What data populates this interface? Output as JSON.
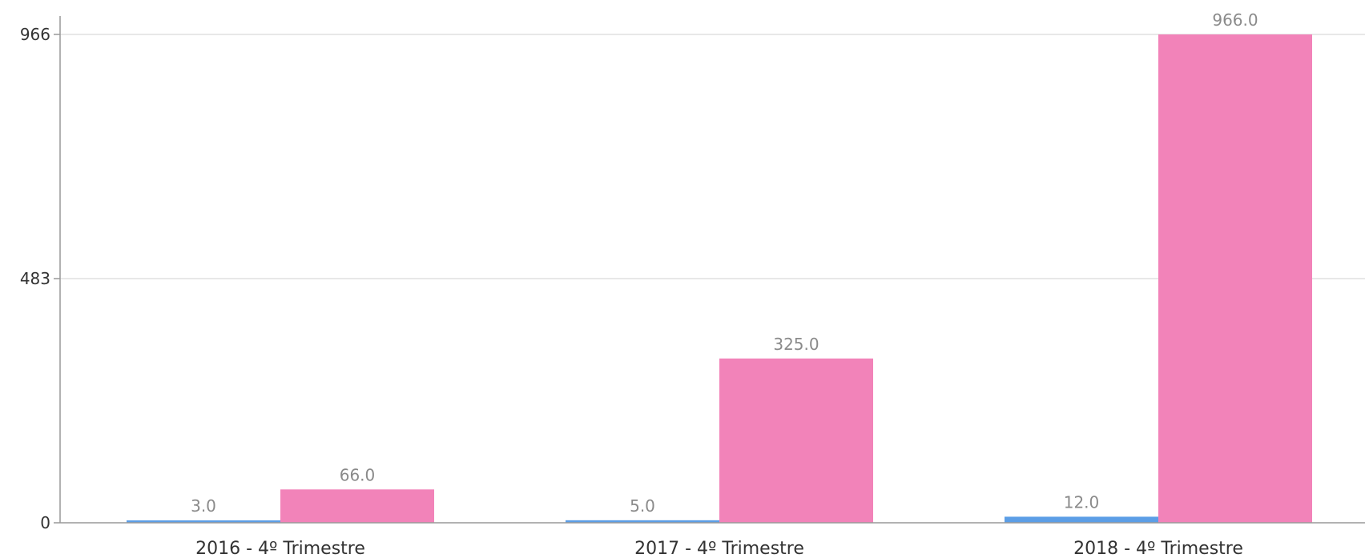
{
  "chart_data": {
    "type": "bar",
    "title": "",
    "xlabel": "",
    "ylabel": "",
    "categories": [
      "2016 - 4º Trimestre",
      "2017 - 4º Trimestre",
      "2018 - 4º Trimestre"
    ],
    "series": [
      {
        "values": [
          3.0,
          5.0,
          12.0
        ],
        "labels": [
          "3.0",
          "5.0",
          "12.0"
        ],
        "color": "#5c9ee6"
      },
      {
        "values": [
          66.0,
          325.0,
          966.0
        ],
        "labels": [
          "66.0",
          "325.0",
          "966.0"
        ],
        "color": "#f283b9"
      }
    ],
    "ylim": [
      0,
      966
    ],
    "yticks": [
      0,
      483,
      966
    ],
    "ytick_labels": [
      "0",
      "483",
      "966"
    ],
    "grid": true,
    "grid_color": "#e0e0e0",
    "axis_color": "#999999"
  }
}
